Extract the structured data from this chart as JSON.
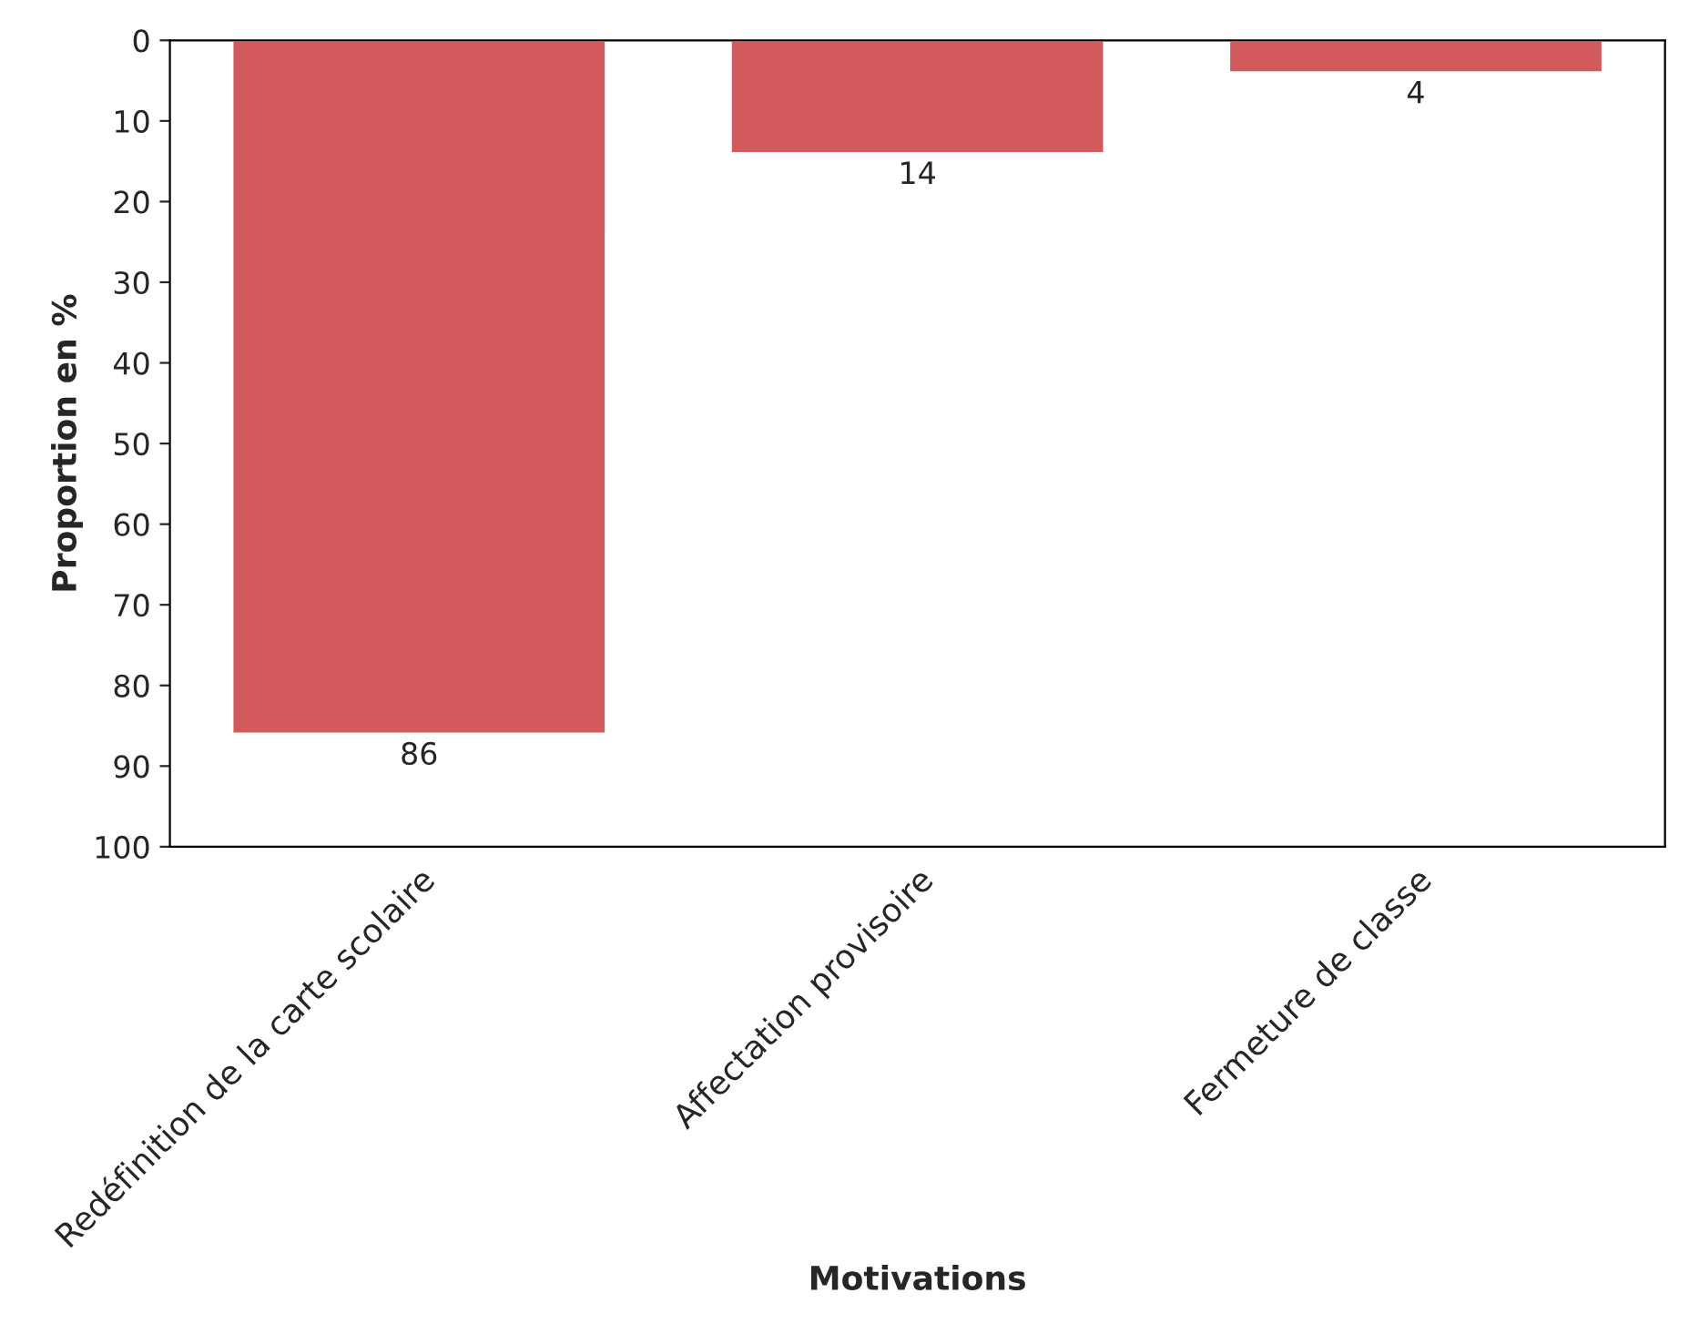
{
  "chart_data": {
    "type": "bar",
    "xlabel": "Motivations",
    "ylabel": "Proportion en %",
    "categories": [
      "Redéfinition de la carte scolaire",
      "Affectation provisoire",
      "Fermeture de classe"
    ],
    "values": [
      86,
      14,
      4
    ],
    "color": "#d25a5c",
    "data_labels": true,
    "ylim": [
      100,
      0
    ],
    "yticks": [
      0,
      10,
      20,
      30,
      40,
      50,
      60,
      70,
      80,
      90,
      100
    ],
    "grid": false
  }
}
